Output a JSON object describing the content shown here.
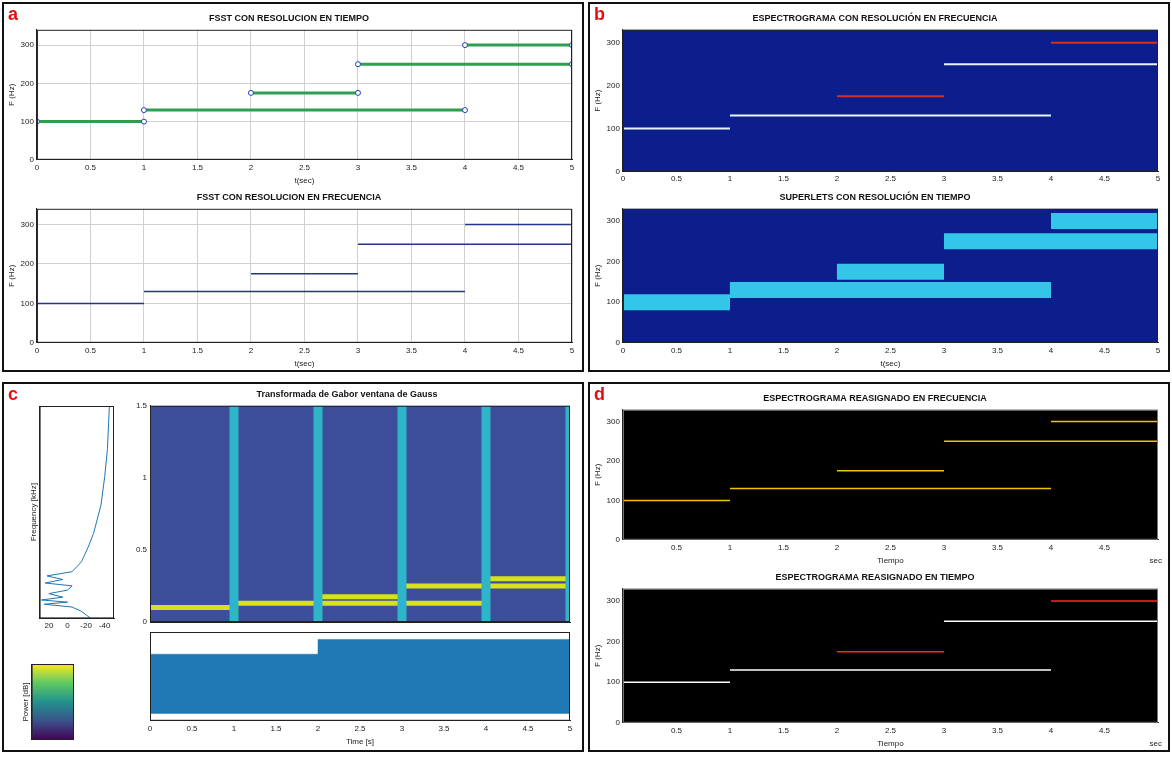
{
  "chart_data": [
    {
      "panel": "a",
      "title": "FSST CON RESOLUCION EN TIEMPO",
      "type": "line",
      "x_label": "t(sec)",
      "y_label": "F (Hz)",
      "xlim": [
        0,
        5
      ],
      "xticks": [
        0,
        0.5,
        1,
        1.5,
        2,
        2.5,
        3,
        3.5,
        4,
        4.5,
        5
      ],
      "ylim": [
        0,
        340
      ],
      "yticks": [
        0,
        100,
        200,
        300
      ],
      "grid": true,
      "marker": "circle",
      "series": [
        {
          "color": "#2e9e4f",
          "x": [
            0,
            1
          ],
          "values": [
            100,
            100
          ]
        },
        {
          "color": "#2e9e4f",
          "x": [
            1,
            4
          ],
          "values": [
            130,
            130
          ]
        },
        {
          "color": "#2e9e4f",
          "x": [
            2,
            3
          ],
          "values": [
            175,
            175
          ]
        },
        {
          "color": "#2e9e4f",
          "x": [
            3,
            5
          ],
          "values": [
            250,
            250
          ]
        },
        {
          "color": "#2e9e4f",
          "x": [
            4,
            5
          ],
          "values": [
            300,
            300
          ]
        }
      ]
    },
    {
      "panel": "a",
      "title": "FSST CON RESOLUCION EN FRECUENCIA",
      "type": "line",
      "x_label": "t(sec)",
      "y_label": "F (Hz)",
      "xlim": [
        0,
        5
      ],
      "xticks": [
        0,
        0.5,
        1,
        1.5,
        2,
        2.5,
        3,
        3.5,
        4,
        4.5,
        5
      ],
      "ylim": [
        0,
        340
      ],
      "yticks": [
        0,
        100,
        200,
        300
      ],
      "grid": true,
      "series": [
        {
          "color": "#24348a",
          "x": [
            0,
            1
          ],
          "values": [
            100,
            100
          ]
        },
        {
          "color": "#24348a",
          "x": [
            1,
            4
          ],
          "values": [
            130,
            130
          ]
        },
        {
          "color": "#24348a",
          "x": [
            2,
            3
          ],
          "values": [
            175,
            175
          ]
        },
        {
          "color": "#24348a",
          "x": [
            3,
            5
          ],
          "values": [
            250,
            250
          ]
        },
        {
          "color": "#24348a",
          "x": [
            4,
            5
          ],
          "values": [
            300,
            300
          ]
        }
      ]
    },
    {
      "panel": "b",
      "title": "ESPECTROGRAMA CON RESOLUCIÓN EN FRECUENCIA",
      "type": "line",
      "y_label": "F (Hz)",
      "xlim": [
        0,
        5
      ],
      "xticks": [
        0,
        0.5,
        1,
        1.5,
        2,
        2.5,
        3,
        3.5,
        4,
        4.5,
        5
      ],
      "ylim": [
        0,
        330
      ],
      "yticks": [
        0,
        100,
        200,
        300
      ],
      "grid": false,
      "series": [
        {
          "color": "#e8f4ff",
          "x": [
            0,
            1
          ],
          "values": [
            100,
            100
          ]
        },
        {
          "color": "#e8f4ff",
          "x": [
            1,
            4
          ],
          "values": [
            130,
            130
          ]
        },
        {
          "color": "#d7301f",
          "x": [
            2,
            3
          ],
          "values": [
            175,
            175
          ]
        },
        {
          "color": "#e8f4ff",
          "x": [
            3,
            5
          ],
          "values": [
            250,
            250
          ]
        },
        {
          "color": "#d7301f",
          "x": [
            4,
            5
          ],
          "values": [
            300,
            300
          ]
        }
      ]
    },
    {
      "panel": "b",
      "title": "SUPERLETS CON RESOLUCIÓN EN TIEMPO",
      "type": "line",
      "x_label": "t(sec)",
      "y_label": "F (Hz)",
      "xlim": [
        0,
        5
      ],
      "xticks": [
        0,
        0.5,
        1,
        1.5,
        2,
        2.5,
        3,
        3.5,
        4,
        4.5,
        5
      ],
      "ylim": [
        0,
        330
      ],
      "yticks": [
        0,
        100,
        200,
        300
      ],
      "grid": false,
      "series": [
        {
          "color": "#e31a1c",
          "x": [
            0,
            1
          ],
          "values": [
            100,
            100
          ]
        },
        {
          "color": "#e31a1c",
          "x": [
            1,
            4
          ],
          "values": [
            130,
            130
          ]
        },
        {
          "color": "#e31a1c",
          "x": [
            2,
            3
          ],
          "values": [
            175,
            175
          ]
        },
        {
          "color": "#e31a1c",
          "x": [
            3,
            5
          ],
          "values": [
            250,
            250
          ]
        },
        {
          "color": "#e31a1c",
          "x": [
            4,
            5
          ],
          "values": [
            300,
            300
          ]
        }
      ]
    },
    {
      "panel": "c",
      "title": "Transformada de Gabor ventana de Gauss",
      "type": "line",
      "xlim": [
        0,
        5
      ],
      "ylim": [
        0,
        1.5
      ],
      "yticks": [
        0,
        0.5,
        1,
        1.5
      ],
      "grid": false,
      "tick_labels": "y",
      "series": [
        {
          "type": "band",
          "color": "#2fb5c8",
          "x": [
            1,
            1
          ],
          "values": [
            0,
            1.5
          ]
        },
        {
          "type": "band",
          "color": "#2fb5c8",
          "x": [
            2,
            2
          ],
          "values": [
            0,
            1.5
          ]
        },
        {
          "type": "band",
          "color": "#2fb5c8",
          "x": [
            3,
            3
          ],
          "values": [
            0,
            1.5
          ]
        },
        {
          "type": "band",
          "color": "#2fb5c8",
          "x": [
            4,
            4
          ],
          "values": [
            0,
            1.5
          ]
        },
        {
          "type": "band",
          "color": "#2fb5c8",
          "x": [
            5,
            5
          ],
          "values": [
            0,
            1.5
          ]
        },
        {
          "color": "#d8e219",
          "x": [
            0,
            1
          ],
          "values": [
            0.1,
            0.1
          ]
        },
        {
          "color": "#d8e219",
          "x": [
            1,
            4
          ],
          "values": [
            0.13,
            0.13
          ]
        },
        {
          "color": "#d8e219",
          "x": [
            2,
            3
          ],
          "values": [
            0.175,
            0.175
          ]
        },
        {
          "color": "#d8e219",
          "x": [
            3,
            5
          ],
          "values": [
            0.25,
            0.25
          ]
        },
        {
          "color": "#d8e219",
          "x": [
            4,
            5
          ],
          "values": [
            0.3,
            0.3
          ]
        }
      ]
    },
    {
      "panel": "c",
      "type": "line",
      "y_label": "Frequency [kHz]",
      "xlim": [
        30,
        -50
      ],
      "xticks": [
        20,
        0,
        -20,
        -40
      ],
      "ylim": [
        0,
        1.5
      ],
      "grid": false,
      "tick_labels": "x",
      "series": [
        {
          "color": "#1f77b4",
          "x": [
            -25,
            -15,
            -5,
            25,
            0,
            28,
            5,
            20,
            0,
            -5,
            24,
            5,
            22,
            -5,
            -15,
            -22,
            -28,
            -32,
            -36,
            -40,
            -43,
            -45
          ],
          "values": [
            0,
            0.05,
            0.08,
            0.1,
            0.115,
            0.13,
            0.15,
            0.175,
            0.2,
            0.23,
            0.25,
            0.275,
            0.3,
            0.33,
            0.4,
            0.5,
            0.6,
            0.7,
            0.8,
            1.0,
            1.2,
            1.5
          ]
        }
      ]
    },
    {
      "panel": "c",
      "type": "area",
      "x_label": "Time [s]",
      "xlim": [
        0,
        5
      ],
      "xticks": [
        0,
        0.5,
        1,
        1.5,
        2,
        2.5,
        3,
        3.5,
        4,
        4.5,
        5
      ],
      "ylim": [
        -1.2,
        1.2
      ],
      "grid": false,
      "tick_labels": "x",
      "series": [
        {
          "color": "#1f77b4",
          "x": [
            0,
            2,
            2,
            5
          ],
          "values": [
            0.6,
            0.6,
            1,
            1
          ]
        },
        {
          "color": "#1f77b4",
          "x": [
            0,
            2,
            2,
            5
          ],
          "values": [
            -1,
            -1,
            -1,
            -1
          ]
        }
      ]
    },
    {
      "panel": "c",
      "type": "colorbar",
      "y_label": "Power [dB]",
      "ylim": [
        -80,
        0
      ],
      "tick_labels": false
    },
    {
      "panel": "d",
      "title": "ESPECTROGRAMA REASIGNADO EN FRECUENCIA",
      "type": "line",
      "x_label": "Tiempo",
      "x_unit": "sec",
      "y_label": "F (Hz)",
      "xlim": [
        0,
        5
      ],
      "xticks": [
        0.5,
        1,
        1.5,
        2,
        2.5,
        3,
        3.5,
        4,
        4.5
      ],
      "ylim": [
        0,
        330
      ],
      "yticks": [
        0,
        100,
        200,
        300
      ],
      "grid": false,
      "series": [
        {
          "color": "#f2c200",
          "x": [
            0,
            1
          ],
          "values": [
            100,
            100
          ]
        },
        {
          "color": "#f2c200",
          "x": [
            1,
            4
          ],
          "values": [
            130,
            130
          ]
        },
        {
          "color": "#f2c200",
          "x": [
            2,
            3
          ],
          "values": [
            175,
            175
          ]
        },
        {
          "color": "#f2c200",
          "x": [
            3,
            5
          ],
          "values": [
            250,
            250
          ]
        },
        {
          "color": "#f2c200",
          "x": [
            4,
            5
          ],
          "values": [
            300,
            300
          ]
        }
      ]
    },
    {
      "panel": "d",
      "title": "ESPECTROGRAMA REASIGNADO EN TIEMPO",
      "type": "line",
      "x_label": "Tiempo",
      "x_unit": "sec",
      "y_label": "F (Hz)",
      "xlim": [
        0,
        5
      ],
      "xticks": [
        0.5,
        1,
        1.5,
        2,
        2.5,
        3,
        3.5,
        4,
        4.5
      ],
      "ylim": [
        0,
        330
      ],
      "yticks": [
        0,
        100,
        200,
        300
      ],
      "grid": false,
      "series": [
        {
          "color": "#ffffff",
          "x": [
            0,
            1
          ],
          "values": [
            100,
            100
          ]
        },
        {
          "color": "#ffffff",
          "x": [
            1,
            4
          ],
          "values": [
            130,
            130
          ]
        },
        {
          "color": "#ff2a1a",
          "x": [
            2,
            3
          ],
          "values": [
            175,
            175
          ]
        },
        {
          "color": "#ffffff",
          "x": [
            3,
            5
          ],
          "values": [
            250,
            250
          ]
        },
        {
          "color": "#ff2a1a",
          "x": [
            4,
            5
          ],
          "values": [
            300,
            300
          ]
        }
      ]
    }
  ]
}
